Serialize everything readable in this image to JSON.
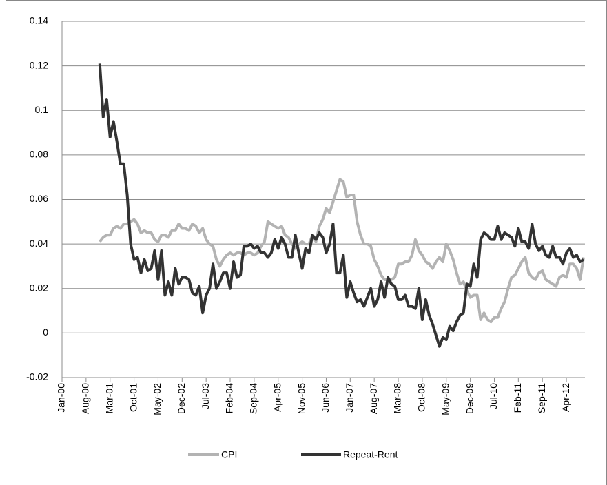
{
  "chart_data": {
    "type": "line",
    "categories": [
      "Jan-00",
      null,
      null,
      null,
      null,
      null,
      null,
      "Aug-00",
      null,
      null,
      null,
      null,
      null,
      null,
      "Mar-01",
      null,
      null,
      null,
      null,
      null,
      null,
      "Oct-01",
      null,
      null,
      null,
      null,
      null,
      null,
      "May-02",
      null,
      null,
      null,
      null,
      null,
      null,
      "Dec-02",
      null,
      null,
      null,
      null,
      null,
      null,
      "Jul-03",
      null,
      null,
      null,
      null,
      null,
      null,
      "Feb-04",
      null,
      null,
      null,
      null,
      null,
      null,
      "Sep-04",
      null,
      null,
      null,
      null,
      null,
      null,
      "Apr-05",
      null,
      null,
      null,
      null,
      null,
      null,
      "Nov-05",
      null,
      null,
      null,
      null,
      null,
      null,
      "Jun-06",
      null,
      null,
      null,
      null,
      null,
      null,
      "Jan-07",
      null,
      null,
      null,
      null,
      null,
      null,
      "Aug-07",
      null,
      null,
      null,
      null,
      null,
      null,
      "Mar-08",
      null,
      null,
      null,
      null,
      null,
      null,
      "Oct-08",
      null,
      null,
      null,
      null,
      null,
      null,
      "May-09",
      null,
      null,
      null,
      null,
      null,
      null,
      "Dec-09",
      null,
      null,
      null,
      null,
      null,
      null,
      "Jul-10",
      null,
      null,
      null,
      null,
      null,
      null,
      "Feb-11",
      null,
      null,
      null,
      null,
      null,
      null,
      "Sep-11",
      null,
      null,
      null,
      null,
      null,
      null,
      "Apr-12",
      null,
      null,
      null,
      null,
      null
    ],
    "series": [
      {
        "name": "CPI",
        "color": "#b3b3b3",
        "values": [
          null,
          null,
          null,
          null,
          null,
          null,
          null,
          null,
          null,
          null,
          null,
          0.041,
          0.043,
          0.044,
          0.044,
          0.047,
          0.048,
          0.047,
          0.049,
          0.049,
          0.05,
          0.051,
          0.049,
          0.045,
          0.046,
          0.045,
          0.045,
          0.042,
          0.041,
          0.044,
          0.044,
          0.043,
          0.046,
          0.046,
          0.049,
          0.047,
          0.047,
          0.046,
          0.049,
          0.048,
          0.045,
          0.047,
          0.042,
          0.04,
          0.039,
          0.033,
          0.03,
          0.033,
          0.035,
          0.036,
          0.035,
          0.036,
          0.036,
          0.035,
          0.036,
          0.036,
          0.035,
          0.036,
          0.039,
          0.041,
          0.05,
          0.049,
          0.048,
          0.047,
          0.048,
          0.044,
          0.043,
          0.04,
          0.038,
          0.04,
          0.041,
          0.04,
          0.04,
          0.044,
          0.041,
          0.048,
          0.051,
          0.056,
          0.054,
          0.059,
          0.064,
          0.069,
          0.068,
          0.061,
          0.062,
          0.062,
          0.05,
          0.044,
          0.04,
          0.04,
          0.039,
          0.033,
          0.03,
          0.026,
          0.024,
          0.024,
          0.024,
          0.025,
          0.031,
          0.031,
          0.032,
          0.032,
          0.035,
          0.042,
          0.037,
          0.035,
          0.032,
          0.031,
          0.029,
          0.032,
          0.034,
          0.032,
          0.04,
          0.037,
          0.033,
          0.027,
          0.022,
          0.023,
          0.019,
          0.016,
          0.017,
          0.017,
          0.006,
          0.009,
          0.006,
          0.005,
          0.007,
          0.007,
          0.011,
          0.014,
          0.02,
          0.025,
          0.026,
          0.029,
          0.032,
          0.034,
          0.027,
          0.025,
          0.024,
          0.027,
          0.028,
          0.024,
          0.023,
          0.022,
          0.021,
          0.025,
          0.026,
          0.025,
          0.031,
          0.031,
          0.029,
          0.024,
          0.034
        ]
      },
      {
        "name": "Repeat-Rent",
        "color": "#333333",
        "values": [
          null,
          null,
          null,
          null,
          null,
          null,
          null,
          null,
          null,
          null,
          null,
          0.121,
          0.097,
          0.105,
          0.088,
          0.095,
          0.086,
          0.076,
          0.076,
          0.062,
          0.04,
          0.033,
          0.034,
          0.027,
          0.033,
          0.028,
          0.029,
          0.037,
          0.024,
          0.037,
          0.017,
          0.023,
          0.017,
          0.029,
          0.022,
          0.025,
          0.025,
          0.024,
          0.018,
          0.017,
          0.021,
          0.009,
          0.017,
          0.02,
          0.031,
          0.02,
          0.023,
          0.027,
          0.027,
          0.02,
          0.032,
          0.025,
          0.026,
          0.039,
          0.039,
          0.04,
          0.038,
          0.039,
          0.036,
          0.036,
          0.034,
          0.036,
          0.042,
          0.038,
          0.043,
          0.04,
          0.034,
          0.034,
          0.044,
          0.036,
          0.029,
          0.038,
          0.036,
          0.044,
          0.042,
          0.045,
          0.043,
          0.036,
          0.04,
          0.049,
          0.027,
          0.027,
          0.035,
          0.016,
          0.023,
          0.018,
          0.014,
          0.015,
          0.012,
          0.016,
          0.02,
          0.012,
          0.015,
          0.023,
          0.016,
          0.025,
          0.022,
          0.021,
          0.015,
          0.015,
          0.017,
          0.012,
          0.012,
          0.011,
          0.02,
          0.006,
          0.015,
          0.008,
          0.004,
          -0.001,
          -0.006,
          -0.002,
          -0.003,
          0.003,
          0.001,
          0.005,
          0.008,
          0.009,
          0.022,
          0.021,
          0.031,
          0.025,
          0.042,
          0.045,
          0.044,
          0.042,
          0.042,
          0.048,
          0.042,
          0.045,
          0.044,
          0.043,
          0.039,
          0.047,
          0.041,
          0.041,
          0.038,
          0.049,
          0.04,
          0.037,
          0.039,
          0.035,
          0.034,
          0.039,
          0.034,
          0.034,
          0.031,
          0.036,
          0.038,
          0.034,
          0.035,
          0.032,
          0.033
        ]
      }
    ],
    "ylim": [
      -0.02,
      0.14
    ],
    "yticks": [
      -0.02,
      0,
      0.02,
      0.04,
      0.06,
      0.08,
      0.1,
      0.12,
      0.14
    ],
    "grid": true,
    "legend": "bottom"
  }
}
